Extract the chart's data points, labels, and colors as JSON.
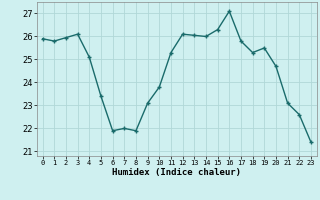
{
  "x": [
    0,
    1,
    2,
    3,
    4,
    5,
    6,
    7,
    8,
    9,
    10,
    11,
    12,
    13,
    14,
    15,
    16,
    17,
    18,
    19,
    20,
    21,
    22,
    23
  ],
  "y": [
    25.9,
    25.8,
    25.95,
    26.1,
    25.1,
    23.4,
    21.9,
    22.0,
    21.9,
    23.1,
    23.8,
    25.3,
    26.1,
    26.05,
    26.0,
    26.3,
    27.1,
    25.8,
    25.3,
    25.5,
    24.7,
    23.1,
    22.6,
    21.4
  ],
  "line_color": "#1a6b6b",
  "marker": "+",
  "marker_size": 3.5,
  "marker_linewidth": 1.0,
  "line_width": 1.0,
  "bg_color": "#cff0f0",
  "grid_color": "#b0d8d8",
  "xlabel": "Humidex (Indice chaleur)",
  "ylabel_ticks": [
    21,
    22,
    23,
    24,
    25,
    26,
    27
  ],
  "xtick_labels": [
    "0",
    "1",
    "2",
    "3",
    "4",
    "5",
    "6",
    "7",
    "8",
    "9",
    "10",
    "11",
    "12",
    "13",
    "14",
    "15",
    "16",
    "17",
    "18",
    "19",
    "20",
    "21",
    "22",
    "23"
  ],
  "ylim": [
    20.8,
    27.5
  ],
  "xlim": [
    -0.5,
    23.5
  ],
  "xlabel_fontsize": 6.5,
  "ytick_fontsize": 6,
  "xtick_fontsize": 5
}
